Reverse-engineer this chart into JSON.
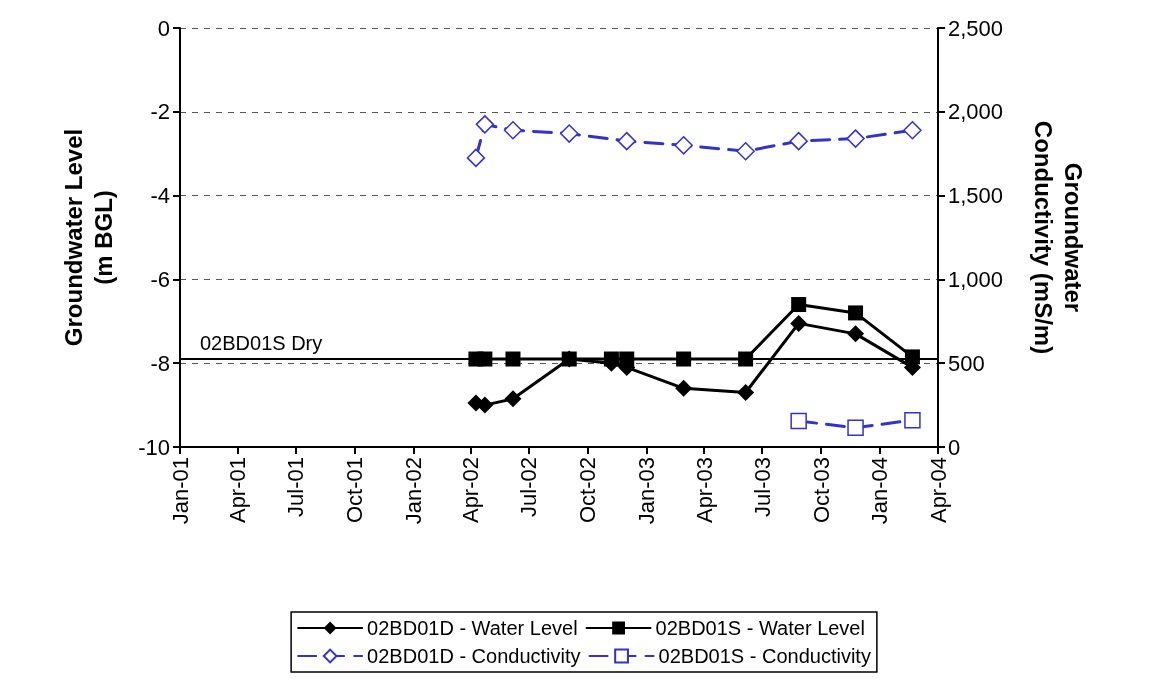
{
  "chart_data": {
    "type": "line",
    "ylabel": "Groundwater Level\n(m BGL)",
    "y2label": "Groundwater\nConductivity (mS/m)",
    "xlim": [
      "2001-01-01",
      "2004-04-01"
    ],
    "xticks": [
      {
        "value": "2001-01-01",
        "label": "Jan-01"
      },
      {
        "value": "2001-04-01",
        "label": "Apr-01"
      },
      {
        "value": "2001-07-01",
        "label": "Jul-01"
      },
      {
        "value": "2001-10-01",
        "label": "Oct-01"
      },
      {
        "value": "2002-01-01",
        "label": "Jan-02"
      },
      {
        "value": "2002-04-01",
        "label": "Apr-02"
      },
      {
        "value": "2002-07-01",
        "label": "Jul-02"
      },
      {
        "value": "2002-10-01",
        "label": "Oct-02"
      },
      {
        "value": "2003-01-01",
        "label": "Jan-03"
      },
      {
        "value": "2003-04-01",
        "label": "Apr-03"
      },
      {
        "value": "2003-07-01",
        "label": "Jul-03"
      },
      {
        "value": "2003-10-01",
        "label": "Oct-03"
      },
      {
        "value": "2004-01-01",
        "label": "Jan-04"
      },
      {
        "value": "2004-04-01",
        "label": "Apr-04"
      }
    ],
    "ylim": [
      -10,
      0
    ],
    "yticks": [
      -10,
      -8,
      -6,
      -4,
      -2,
      0
    ],
    "y2lim": [
      0,
      2500
    ],
    "y2ticks": [
      0,
      500,
      {
        "value": 1000,
        "label": "1,000"
      },
      {
        "value": 1500,
        "label": "1,500"
      },
      {
        "value": 2000,
        "label": "2,000"
      },
      {
        "value": 2500,
        "label": "2,500"
      }
    ],
    "grid": "y",
    "legend": "bottom",
    "ref_lines": [
      {
        "axis": "y",
        "value": -7.9,
        "label": "02BD01S Dry",
        "color": "#000000",
        "line_style": "solid"
      }
    ],
    "series": [
      {
        "name": "02BD01D - Water Level",
        "axis": "y",
        "color": "#000000",
        "marker": "diamond",
        "line_style": "solid",
        "x": [
          "2002-04-09",
          "2002-04-23",
          "2002-06-06",
          "2002-09-02",
          "2002-11-07",
          "2002-12-01",
          "2003-02-28",
          "2003-06-05",
          "2003-08-27",
          "2003-11-24",
          "2004-02-21"
        ],
        "values": [
          -8.95,
          -9.0,
          -8.85,
          -7.9,
          -8.0,
          -8.1,
          -8.6,
          -8.7,
          -7.05,
          -7.3,
          -8.1
        ]
      },
      {
        "name": "02BD01S - Water Level",
        "axis": "y",
        "color": "#000000",
        "marker": "square",
        "line_style": "solid",
        "x": [
          "2002-04-09",
          "2002-04-23",
          "2002-06-06",
          "2002-09-02",
          "2002-11-07",
          "2002-12-01",
          "2003-02-28",
          "2003-06-05",
          "2003-08-27",
          "2003-11-24",
          "2004-02-21"
        ],
        "values": [
          -7.9,
          -7.9,
          -7.9,
          -7.9,
          -7.9,
          -7.9,
          -7.9,
          -7.9,
          -6.6,
          -6.8,
          -7.85
        ]
      },
      {
        "name": "02BD01D - Conductivity",
        "axis": "y2",
        "color": "#3333cc",
        "marker": "diamond",
        "line_style": "dashed",
        "x": [
          "2002-04-09",
          "2002-04-23",
          "2002-06-06",
          "2002-09-02",
          "2002-12-01",
          "2003-02-28",
          "2003-06-05",
          "2003-08-27",
          "2003-11-24",
          "2004-02-21"
        ],
        "values": [
          1725,
          1925,
          1890,
          1870,
          1825,
          1800,
          1765,
          1825,
          1840,
          1890
        ]
      },
      {
        "name": "02BD01S - Conductivity",
        "axis": "y2",
        "color": "#3333cc",
        "marker": "square",
        "line_style": "dashed",
        "x": [
          "2003-08-27",
          "2003-11-24",
          "2004-02-21"
        ],
        "values": [
          155,
          115,
          160
        ]
      }
    ]
  }
}
